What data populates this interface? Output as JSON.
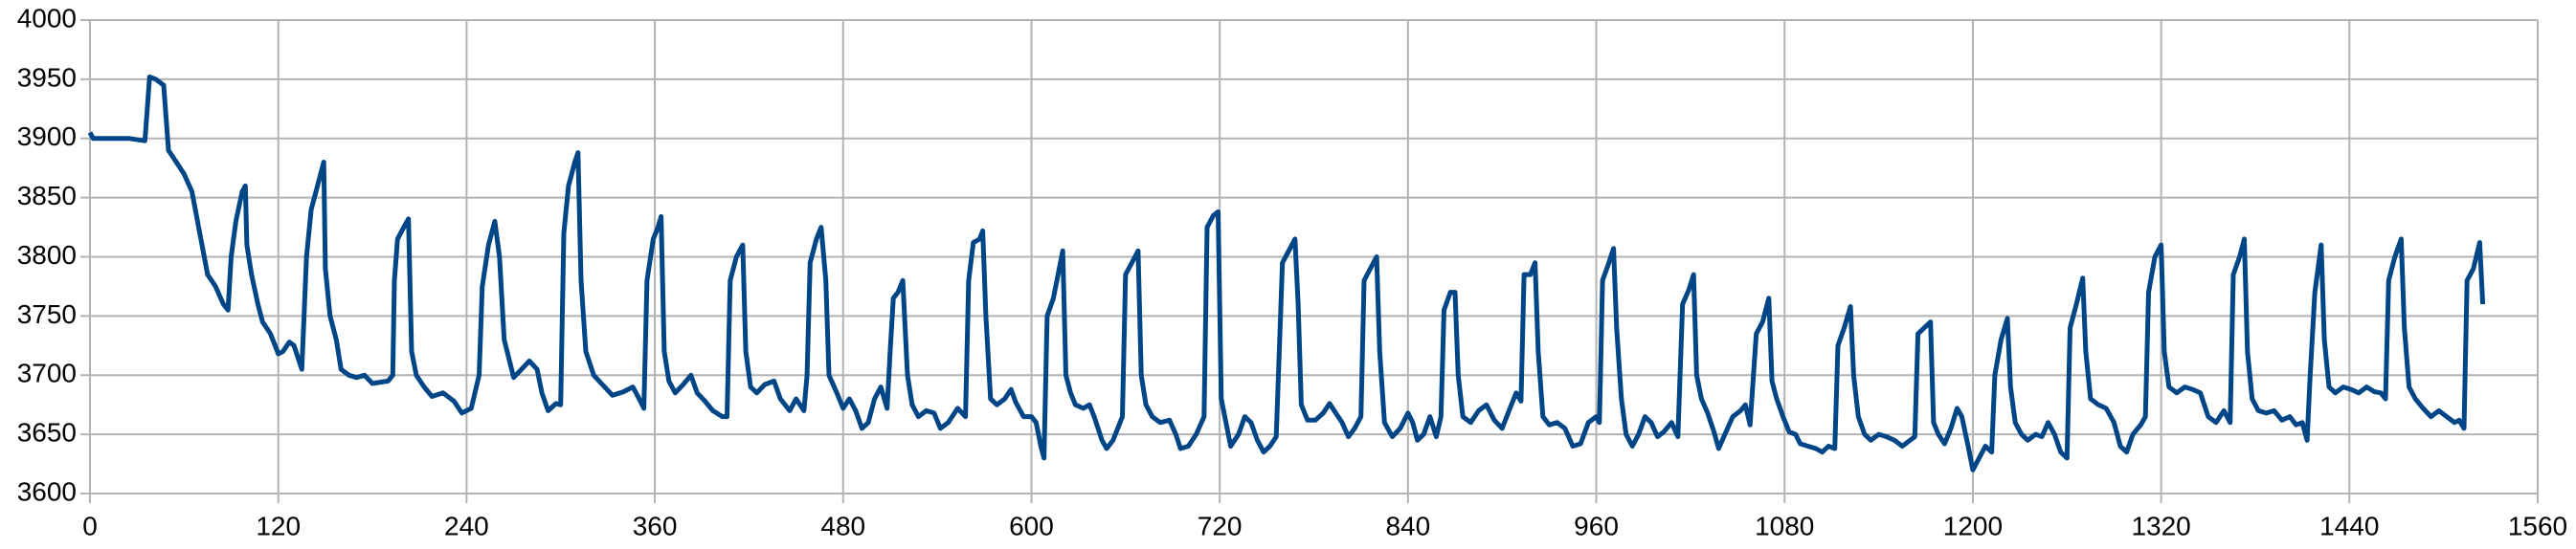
{
  "chart_data": {
    "type": "line",
    "color": "#004586",
    "grid": true,
    "xlim": [
      0,
      1560
    ],
    "xticks": [
      0,
      120,
      240,
      360,
      480,
      600,
      720,
      840,
      960,
      1080,
      1200,
      1320,
      1440,
      1560
    ],
    "ylim": [
      3600,
      4000
    ],
    "yticks": [
      3600,
      3650,
      3700,
      3750,
      3800,
      3850,
      3900,
      3950,
      4000
    ],
    "x": [
      0,
      2,
      25,
      35,
      38,
      42,
      47,
      50,
      55,
      60,
      65,
      70,
      75,
      80,
      85,
      88,
      90,
      93,
      97,
      99,
      100,
      103,
      107,
      110,
      115,
      118,
      120,
      123,
      127,
      130,
      135,
      138,
      141,
      145,
      149,
      150,
      153,
      157,
      160,
      165,
      170,
      175,
      180,
      190,
      193,
      194,
      196,
      200,
      203,
      205,
      208,
      213,
      218,
      225,
      232,
      237,
      243,
      248,
      250,
      254,
      258,
      261,
      264,
      270,
      275,
      280,
      285,
      288,
      292,
      297,
      300,
      302,
      305,
      309,
      311,
      313,
      316,
      321,
      328,
      333,
      340,
      346,
      350,
      353,
      355,
      359,
      362,
      364,
      366,
      369,
      373,
      378,
      383,
      387,
      392,
      397,
      403,
      406,
      408,
      412,
      416,
      418,
      421,
      425,
      430,
      436,
      440,
      446,
      450,
      455,
      457,
      459,
      463,
      466,
      469,
      471,
      476,
      480,
      484,
      488,
      492,
      496,
      500,
      504,
      508,
      510,
      512,
      515,
      518,
      521,
      524,
      528,
      533,
      538,
      542,
      547,
      553,
      558,
      560,
      563,
      567,
      569,
      571,
      574,
      578,
      583,
      587,
      590,
      595,
      600,
      603,
      606,
      608,
      610,
      614,
      617,
      620,
      622,
      625,
      628,
      633,
      637,
      640,
      645,
      648,
      652,
      655,
      658,
      660,
      664,
      668,
      670,
      673,
      677,
      682,
      688,
      692,
      695,
      700,
      705,
      710,
      712,
      716,
      719,
      721,
      724,
      727,
      732,
      736,
      740,
      744,
      748,
      752,
      756,
      760,
      764,
      768,
      770,
      772,
      776,
      781,
      786,
      790,
      794,
      798,
      802,
      806,
      810,
      812,
      816,
      820,
      822,
      825,
      830,
      835,
      840,
      843,
      846,
      850,
      854,
      858,
      861,
      863,
      867,
      870,
      872,
      875,
      880,
      885,
      890,
      895,
      900,
      905,
      909,
      912,
      914,
      918,
      921,
      923,
      926,
      930,
      935,
      940,
      945,
      950,
      955,
      960,
      962,
      964,
      968,
      971,
      973,
      976,
      979,
      983,
      987,
      991,
      995,
      999,
      1003,
      1008,
      1012,
      1015,
      1019,
      1022,
      1024,
      1027,
      1031,
      1035,
      1038,
      1042,
      1047,
      1052,
      1055,
      1058,
      1062,
      1066,
      1070,
      1072,
      1075,
      1079,
      1083,
      1087,
      1090,
      1095,
      1100,
      1104,
      1108,
      1112,
      1114,
      1118,
      1122,
      1124,
      1127,
      1131,
      1135,
      1140,
      1145,
      1150,
      1155,
      1160,
      1163,
      1165,
      1169,
      1173,
      1175,
      1178,
      1182,
      1186,
      1190,
      1193,
      1197,
      1200,
      1204,
      1208,
      1212,
      1214,
      1218,
      1222,
      1224,
      1227,
      1231,
      1235,
      1240,
      1244,
      1248,
      1252,
      1256,
      1260,
      1262,
      1266,
      1270,
      1272,
      1275,
      1280,
      1285,
      1290,
      1294,
      1298,
      1302,
      1307,
      1310,
      1312,
      1316,
      1320,
      1322,
      1325,
      1330,
      1335,
      1340,
      1345,
      1350,
      1355,
      1360,
      1364,
      1366,
      1370,
      1373,
      1375,
      1378,
      1382,
      1387,
      1392,
      1397,
      1402,
      1406,
      1410,
      1413,
      1415,
      1418,
      1422,
      1424,
      1427,
      1431,
      1436,
      1441,
      1446,
      1451,
      1456,
      1460,
      1463,
      1465,
      1469,
      1473,
      1475,
      1478,
      1482,
      1487,
      1492,
      1497,
      1502,
      1507,
      1510,
      1513,
      1515,
      1519,
      1523,
      1525
    ],
    "values": [
      3905,
      3900,
      3900,
      3898,
      3952,
      3950,
      3945,
      3890,
      3880,
      3870,
      3855,
      3820,
      3785,
      3775,
      3760,
      3755,
      3800,
      3830,
      3855,
      3860,
      3810,
      3785,
      3760,
      3745,
      3735,
      3725,
      3718,
      3720,
      3728,
      3725,
      3705,
      3800,
      3840,
      3860,
      3880,
      3790,
      3750,
      3730,
      3705,
      3700,
      3698,
      3700,
      3693,
      3695,
      3700,
      3780,
      3815,
      3825,
      3832,
      3720,
      3700,
      3690,
      3682,
      3685,
      3678,
      3668,
      3672,
      3700,
      3775,
      3810,
      3830,
      3800,
      3730,
      3698,
      3705,
      3712,
      3705,
      3685,
      3670,
      3676,
      3675,
      3820,
      3860,
      3880,
      3888,
      3780,
      3720,
      3700,
      3690,
      3683,
      3686,
      3690,
      3680,
      3672,
      3780,
      3815,
      3825,
      3834,
      3720,
      3695,
      3685,
      3692,
      3700,
      3685,
      3678,
      3670,
      3665,
      3665,
      3780,
      3800,
      3810,
      3720,
      3690,
      3685,
      3692,
      3695,
      3680,
      3670,
      3680,
      3670,
      3700,
      3795,
      3815,
      3825,
      3780,
      3700,
      3685,
      3672,
      3680,
      3670,
      3655,
      3660,
      3680,
      3690,
      3672,
      3720,
      3765,
      3770,
      3780,
      3700,
      3675,
      3665,
      3670,
      3668,
      3655,
      3660,
      3672,
      3665,
      3780,
      3812,
      3815,
      3822,
      3750,
      3680,
      3675,
      3680,
      3688,
      3677,
      3665,
      3665,
      3660,
      3640,
      3630,
      3750,
      3765,
      3785,
      3805,
      3700,
      3685,
      3675,
      3672,
      3675,
      3665,
      3645,
      3638,
      3645,
      3655,
      3665,
      3785,
      3795,
      3805,
      3700,
      3675,
      3665,
      3660,
      3662,
      3650,
      3638,
      3640,
      3650,
      3665,
      3825,
      3835,
      3838,
      3680,
      3660,
      3640,
      3650,
      3665,
      3660,
      3645,
      3635,
      3640,
      3648,
      3795,
      3805,
      3815,
      3760,
      3675,
      3662,
      3662,
      3668,
      3676,
      3668,
      3660,
      3648,
      3655,
      3665,
      3780,
      3790,
      3800,
      3720,
      3660,
      3648,
      3655,
      3668,
      3660,
      3645,
      3650,
      3665,
      3648,
      3665,
      3755,
      3770,
      3770,
      3700,
      3665,
      3660,
      3670,
      3675,
      3662,
      3655,
      3672,
      3685,
      3678,
      3785,
      3785,
      3795,
      3720,
      3665,
      3658,
      3660,
      3655,
      3640,
      3642,
      3660,
      3665,
      3660,
      3780,
      3795,
      3807,
      3740,
      3680,
      3650,
      3640,
      3650,
      3665,
      3660,
      3648,
      3652,
      3660,
      3648,
      3760,
      3772,
      3785,
      3700,
      3680,
      3668,
      3652,
      3638,
      3650,
      3665,
      3670,
      3675,
      3658,
      3735,
      3745,
      3765,
      3695,
      3680,
      3665,
      3652,
      3650,
      3642,
      3640,
      3638,
      3635,
      3640,
      3638,
      3725,
      3740,
      3758,
      3700,
      3665,
      3650,
      3645,
      3650,
      3648,
      3645,
      3640,
      3645,
      3648,
      3735,
      3740,
      3745,
      3660,
      3650,
      3642,
      3655,
      3672,
      3665,
      3640,
      3620,
      3630,
      3640,
      3635,
      3700,
      3730,
      3748,
      3690,
      3660,
      3650,
      3645,
      3650,
      3648,
      3660,
      3650,
      3635,
      3630,
      3740,
      3760,
      3782,
      3720,
      3680,
      3675,
      3672,
      3660,
      3640,
      3635,
      3650,
      3658,
      3665,
      3770,
      3800,
      3810,
      3720,
      3690,
      3685,
      3690,
      3688,
      3685,
      3665,
      3660,
      3670,
      3660,
      3785,
      3800,
      3815,
      3720,
      3680,
      3670,
      3668,
      3670,
      3662,
      3665,
      3658,
      3660,
      3645,
      3700,
      3770,
      3810,
      3730,
      3690,
      3685,
      3690,
      3688,
      3685,
      3690,
      3686,
      3685,
      3680,
      3780,
      3800,
      3815,
      3740,
      3690,
      3680,
      3672,
      3665,
      3670,
      3665,
      3660,
      3662,
      3655,
      3780,
      3790,
      3812,
      3760
    ]
  }
}
